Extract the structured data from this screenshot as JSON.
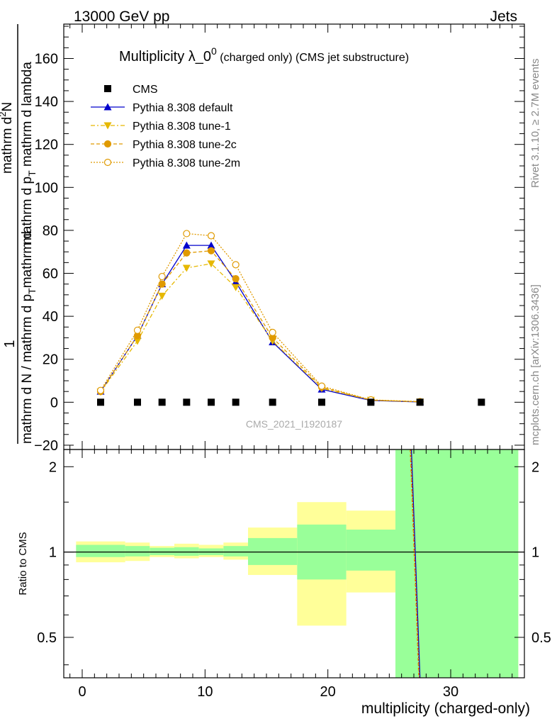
{
  "header": {
    "left": "13000 GeV pp",
    "right": "Jets"
  },
  "side_labels": {
    "top": "Rivet 3.1.10, ≥ 2.7M events",
    "bottom": "mcplots.cern.ch [arXiv:1306.3436]"
  },
  "chart_data": {
    "type": "line",
    "title": {
      "main": "Multiplicity λ_0",
      "sup": "0",
      "paren": " (charged only) (CMS jet substructure)"
    },
    "analysis_id": "CMS_2021_I1920187",
    "xlabel": "multiplicity (charged-only)",
    "ylabel": {
      "numerator": "1",
      "denominator": "mathrm d N / mathrm d p",
      "denominator_sub": "T",
      "rhs": "mathrm d",
      "rhs_sup": "2",
      "rhs_tail": "N",
      "rhs_denom": "mathrm d p",
      "rhs_denom_sub": "T",
      "rhs_denom_tail": " mathrm d lambda",
      "full": "mathrm d N / mathrm d p_T mathrm d^2N / mathrm d p_T mathrm d lambda"
    },
    "ratio_ylabel": "Ratio to CMS",
    "xlim": [
      -1.5,
      36
    ],
    "ylim": [
      -22,
      176
    ],
    "ratio_ylim": [
      0.36,
      2.3
    ],
    "x_ticks": [
      "0",
      "10",
      "20",
      "30"
    ],
    "y_ticks": [
      "−20",
      "0",
      "20",
      "40",
      "60",
      "80",
      "100",
      "120",
      "140",
      "160"
    ],
    "ratio_ticks": [
      "0.5",
      "1",
      "2"
    ],
    "legend_position": "top-left",
    "cms": {
      "name": "CMS",
      "x": [
        1.5,
        4.5,
        6.5,
        8.5,
        10.5,
        12.5,
        15.5,
        19.5,
        23.5,
        27.5,
        32.5
      ],
      "y": [
        0,
        0,
        0,
        0,
        0,
        0,
        0,
        0,
        0,
        0,
        0
      ]
    },
    "series": [
      {
        "name": "Pythia 8.308 default",
        "color": "#0000cc",
        "x": [
          1.5,
          4.5,
          6.5,
          8.5,
          10.5,
          12.5,
          15.5,
          19.5,
          23.5,
          27.5
        ],
        "values": [
          5,
          31,
          55,
          73,
          73,
          56,
          28,
          6,
          0.8,
          0.1
        ]
      },
      {
        "name": "Pythia 8.308 tune-1",
        "color": "#e6b800",
        "x": [
          1.5,
          4.5,
          6.5,
          8.5,
          10.5,
          12.5,
          15.5,
          19.5,
          23.5,
          27.5
        ],
        "values": [
          4.8,
          28.5,
          49.5,
          62.5,
          64.5,
          53.5,
          28.5,
          6.5,
          1.0,
          0.2
        ]
      },
      {
        "name": "Pythia 8.308 tune-2c",
        "color": "#e09a00",
        "x": [
          1.5,
          4.5,
          6.5,
          8.5,
          10.5,
          12.5,
          15.5,
          19.5,
          23.5,
          27.5
        ],
        "values": [
          5,
          31,
          55,
          69.5,
          70.5,
          57.5,
          30,
          7,
          1.0,
          0.2
        ]
      },
      {
        "name": "Pythia 8.308 tune-2m",
        "color": "#e09a00",
        "x": [
          1.5,
          4.5,
          6.5,
          8.5,
          10.5,
          12.5,
          15.5,
          19.5,
          23.5,
          27.5
        ],
        "values": [
          5.5,
          33.5,
          58.5,
          78.5,
          77.5,
          64,
          32.5,
          7.5,
          1.1,
          0.3
        ]
      }
    ],
    "ratio_bands": [
      {
        "x0": -0.5,
        "x1": 3.5,
        "yellow": [
          0.92,
          1.09
        ],
        "green": [
          0.96,
          1.06
        ]
      },
      {
        "x0": 3.5,
        "x1": 5.5,
        "yellow": [
          0.93,
          1.08
        ],
        "green": [
          0.965,
          1.05
        ]
      },
      {
        "x0": 5.5,
        "x1": 7.5,
        "yellow": [
          0.96,
          1.05
        ],
        "green": [
          0.975,
          1.035
        ]
      },
      {
        "x0": 7.5,
        "x1": 9.5,
        "yellow": [
          0.95,
          1.07
        ],
        "green": [
          0.97,
          1.04
        ]
      },
      {
        "x0": 9.5,
        "x1": 11.5,
        "yellow": [
          0.96,
          1.06
        ],
        "green": [
          0.975,
          1.03
        ]
      },
      {
        "x0": 11.5,
        "x1": 13.5,
        "yellow": [
          0.94,
          1.08
        ],
        "green": [
          0.965,
          1.05
        ]
      },
      {
        "x0": 13.5,
        "x1": 17.5,
        "yellow": [
          0.83,
          1.22
        ],
        "green": [
          0.9,
          1.12
        ]
      },
      {
        "x0": 17.5,
        "x1": 21.5,
        "yellow": [
          0.55,
          1.5
        ],
        "green": [
          0.8,
          1.25
        ]
      },
      {
        "x0": 21.5,
        "x1": 25.5,
        "yellow": [
          0.72,
          1.4
        ],
        "green": [
          0.86,
          1.2
        ]
      },
      {
        "x0": 25.5,
        "x1": 35.5,
        "yellow": [
          0.36,
          2.3
        ],
        "green": [
          0.36,
          2.3
        ]
      }
    ]
  }
}
